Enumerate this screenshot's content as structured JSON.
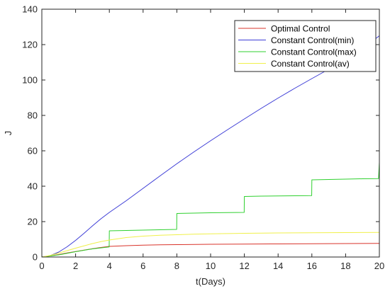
{
  "chart_data": {
    "type": "line",
    "xlabel": "t(Days)",
    "ylabel": "J",
    "xlim": [
      0,
      20
    ],
    "ylim": [
      0,
      140
    ],
    "xticks": [
      0,
      2,
      4,
      6,
      8,
      10,
      12,
      14,
      16,
      18,
      20
    ],
    "yticks": [
      0,
      20,
      40,
      60,
      80,
      100,
      120,
      140
    ],
    "grid": false,
    "legend_position": "top-right",
    "series": [
      {
        "name": "Optimal Control",
        "color": "#d9342b",
        "x": [
          0,
          0.5,
          1,
          1.5,
          2,
          2.5,
          3,
          3.5,
          4,
          5,
          6,
          7,
          8,
          10,
          12,
          14,
          16,
          18,
          20
        ],
        "y": [
          0,
          0.6,
          1.4,
          2.3,
          3.1,
          3.9,
          4.7,
          5.4,
          6.0,
          6.4,
          6.7,
          6.9,
          7.0,
          7.2,
          7.3,
          7.4,
          7.5,
          7.6,
          7.7
        ]
      },
      {
        "name": "Constant Control(min)",
        "color": "#3c3cd6",
        "x": [
          0,
          0.5,
          1,
          1.5,
          2,
          2.5,
          3,
          3.5,
          4,
          5,
          6,
          7,
          8,
          9,
          10,
          11,
          12,
          13,
          14,
          15,
          16,
          17,
          18,
          19,
          20
        ],
        "y": [
          0,
          0.8,
          2.8,
          5.8,
          9.4,
          13.4,
          17.6,
          21.6,
          25.2,
          31.8,
          38.8,
          45.8,
          52.7,
          59.3,
          65.7,
          71.9,
          78.0,
          84.0,
          89.8,
          95.4,
          100.8,
          106.1,
          111.0,
          117.5,
          125.0
        ]
      },
      {
        "name": "Constant Control(max)",
        "color": "#2fd02f",
        "x": [
          0,
          1,
          2,
          3,
          3.99,
          4,
          5,
          6,
          7,
          7.99,
          8,
          9,
          10,
          11,
          11.99,
          12,
          13,
          14,
          15,
          15.99,
          16,
          17,
          18,
          19,
          19.95,
          20
        ],
        "y": [
          0,
          1.2,
          3.0,
          4.6,
          5.7,
          14.8,
          15.0,
          15.2,
          15.4,
          15.6,
          24.6,
          24.8,
          25.0,
          25.1,
          25.2,
          34.2,
          34.4,
          34.5,
          34.6,
          34.7,
          43.6,
          43.8,
          44.0,
          44.2,
          44.3,
          53.5
        ]
      },
      {
        "name": "Constant Control(av)",
        "color": "#f0f04a",
        "x": [
          0,
          0.5,
          1,
          1.5,
          2,
          2.5,
          3,
          3.5,
          4,
          5,
          6,
          7,
          8,
          9,
          10,
          12,
          14,
          16,
          18,
          20
        ],
        "y": [
          0,
          0.9,
          2.2,
          3.6,
          5.0,
          6.3,
          7.6,
          8.7,
          9.6,
          11.0,
          11.8,
          12.3,
          12.6,
          12.9,
          13.1,
          13.4,
          13.6,
          13.7,
          13.8,
          13.9
        ]
      }
    ]
  }
}
